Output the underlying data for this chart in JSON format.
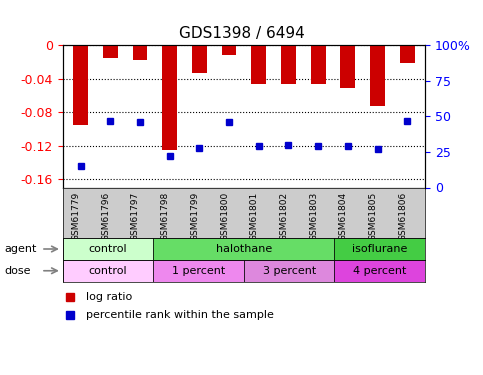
{
  "title": "GDS1398 / 6494",
  "samples": [
    "GSM61779",
    "GSM61796",
    "GSM61797",
    "GSM61798",
    "GSM61799",
    "GSM61800",
    "GSM61801",
    "GSM61802",
    "GSM61803",
    "GSM61804",
    "GSM61805",
    "GSM61806"
  ],
  "log_ratios": [
    -0.095,
    -0.015,
    -0.018,
    -0.125,
    -0.033,
    -0.012,
    -0.047,
    -0.047,
    -0.046,
    -0.051,
    -0.073,
    -0.022
  ],
  "percentile_ranks": [
    15,
    47,
    46,
    22,
    28,
    46,
    29,
    30,
    29,
    29,
    27,
    47
  ],
  "ylim_left": [
    -0.17,
    0.0
  ],
  "ylim_right": [
    0,
    100
  ],
  "yticks_left": [
    0,
    -0.04,
    -0.08,
    -0.12,
    -0.16
  ],
  "yticks_right": [
    0,
    25,
    50,
    75,
    100
  ],
  "bar_color": "#cc0000",
  "dot_color": "#0000cc",
  "agent_groups": [
    {
      "label": "control",
      "start": 0,
      "end": 3,
      "color": "#ccffcc"
    },
    {
      "label": "halothane",
      "start": 3,
      "end": 9,
      "color": "#66dd66"
    },
    {
      "label": "isoflurane",
      "start": 9,
      "end": 12,
      "color": "#44cc44"
    }
  ],
  "dose_groups": [
    {
      "label": "control",
      "start": 0,
      "end": 3,
      "color": "#ffccff"
    },
    {
      "label": "1 percent",
      "start": 3,
      "end": 6,
      "color": "#ee88ee"
    },
    {
      "label": "3 percent",
      "start": 6,
      "end": 9,
      "color": "#dd88dd"
    },
    {
      "label": "4 percent",
      "start": 9,
      "end": 12,
      "color": "#dd44dd"
    }
  ],
  "tick_area_color": "#cccccc",
  "legend_items": [
    {
      "color": "#cc0000",
      "label": "log ratio"
    },
    {
      "color": "#0000cc",
      "label": "percentile rank within the sample"
    }
  ]
}
